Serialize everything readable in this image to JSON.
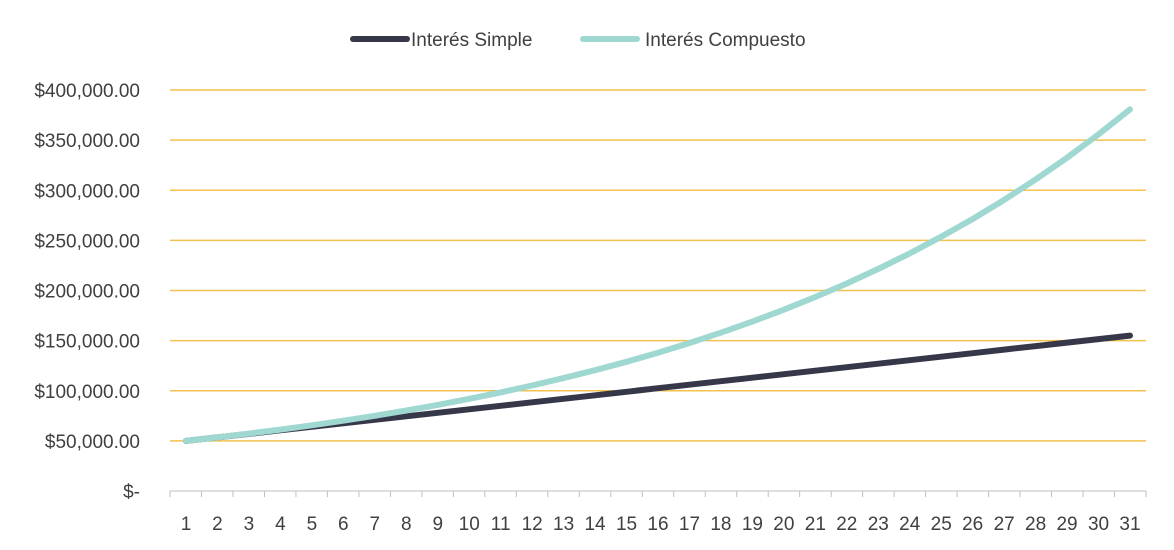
{
  "chart_data": {
    "type": "line",
    "title": "",
    "xlabel": "",
    "ylabel": "",
    "categories": [
      "1",
      "2",
      "3",
      "4",
      "5",
      "6",
      "7",
      "8",
      "9",
      "10",
      "11",
      "12",
      "13",
      "14",
      "15",
      "16",
      "17",
      "18",
      "19",
      "20",
      "21",
      "22",
      "23",
      "24",
      "25",
      "26",
      "27",
      "28",
      "29",
      "30",
      "31"
    ],
    "y_ticks": [
      0,
      50000,
      100000,
      150000,
      200000,
      250000,
      300000,
      350000,
      400000
    ],
    "y_tick_labels": [
      "$-",
      "$50,000.00",
      "$100,000.00",
      "$150,000.00",
      "$200,000.00",
      "$250,000.00",
      "$300,000.00",
      "$350,000.00",
      "$400,000.00"
    ],
    "ylim": [
      0,
      400000
    ],
    "grid": true,
    "legend_position": "top",
    "gridline_color": "#F2C14E",
    "series": [
      {
        "name": "Interés Simple",
        "color": "#363849",
        "values": [
          50000,
          53500,
          57000,
          60500,
          64000,
          67500,
          71000,
          74500,
          78000,
          81500,
          85000,
          88500,
          92000,
          95500,
          99000,
          102500,
          106000,
          109500,
          113000,
          116500,
          120000,
          123500,
          127000,
          130500,
          134000,
          137500,
          141000,
          144500,
          148000,
          151500,
          155000
        ]
      },
      {
        "name": "Interés Compuesto",
        "color": "#9FD8D1",
        "values": [
          50000,
          53500,
          57245,
          61252,
          65540,
          70128,
          75037,
          80289,
          85909,
          91923,
          98358,
          105243,
          112610,
          120492,
          128927,
          137952,
          147608,
          157941,
          168997,
          180826,
          193484,
          207028,
          221520,
          237026,
          253618,
          271371,
          290367,
          310693,
          332441,
          355712,
          380612
        ]
      }
    ]
  }
}
